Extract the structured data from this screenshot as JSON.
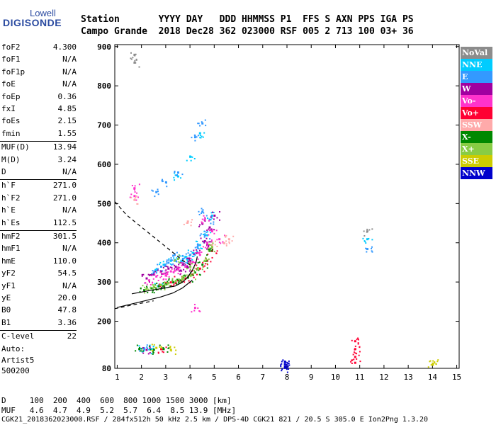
{
  "logo": {
    "brand": "Lowell",
    "product": "DIGISONDE"
  },
  "header": {
    "line1": "Station       YYYY DAY   DDD HHMMSS P1  FFS S AXN PPS IGA PS",
    "line2": "Campo Grande  2018 Dec28 362 023000 RSF 005 2 713 100 03+ 36"
  },
  "params": [
    [
      {
        "name": "foF2",
        "value": "4.300"
      },
      {
        "name": "foF1",
        "value": "N/A"
      },
      {
        "name": "foF1p",
        "value": "N/A"
      },
      {
        "name": "foE",
        "value": "N/A"
      },
      {
        "name": "foEp",
        "value": "0.36"
      },
      {
        "name": "fxI",
        "value": "4.85"
      },
      {
        "name": "foEs",
        "value": "2.15"
      },
      {
        "name": "fmin",
        "value": "1.55"
      }
    ],
    [
      {
        "name": "MUF(D)",
        "value": "13.94"
      },
      {
        "name": "M(D)",
        "value": "3.24"
      },
      {
        "name": "D",
        "value": "N/A"
      }
    ],
    [
      {
        "name": "h`F",
        "value": "271.0"
      },
      {
        "name": "h`F2",
        "value": "271.0"
      },
      {
        "name": "h`E",
        "value": "N/A"
      },
      {
        "name": "h`Es",
        "value": "112.5"
      }
    ],
    [
      {
        "name": "hmF2",
        "value": "301.5"
      },
      {
        "name": "hmF1",
        "value": "N/A"
      },
      {
        "name": "hmE",
        "value": "110.0"
      },
      {
        "name": "yF2",
        "value": "54.5"
      },
      {
        "name": "yF1",
        "value": "N/A"
      },
      {
        "name": "yE",
        "value": "20.0"
      },
      {
        "name": "B0",
        "value": "47.8"
      },
      {
        "name": "B1",
        "value": "3.36"
      }
    ],
    [
      {
        "name": "C-level",
        "value": "22"
      }
    ]
  ],
  "autoscaling": {
    "line1": "Auto:",
    "line2": "Artist5",
    "line3": "500200"
  },
  "footer": {
    "d_line": "D     100  200  400  600  800 1000 1500 3000 [km]",
    "muf_line": "MUF   4.6  4.7  4.9  5.2  5.7  6.4  8.5 13.9 [MHz]",
    "info_line": "CGK21_2018362023000.RSF / 284fx512h 50 kHz 2.5 km / DPS-4D CGK21 821 / 20.5 S 305.0 E Ion2Png 1.3.20"
  },
  "legend": [
    {
      "label": "NoVal",
      "color": "#8c8c8c"
    },
    {
      "label": "NNE",
      "color": "#00ccff"
    },
    {
      "label": "E",
      "color": "#3399ff"
    },
    {
      "label": "W",
      "color": "#a000a0"
    },
    {
      "label": "Vo-",
      "color": "#ff33cc"
    },
    {
      "label": "Vo+",
      "color": "#ff0033"
    },
    {
      "label": "SSW",
      "color": "#ffaaaa"
    },
    {
      "label": "X-",
      "color": "#008800"
    },
    {
      "label": "X+",
      "color": "#88cc44"
    },
    {
      "label": "SSE",
      "color": "#cccc00"
    },
    {
      "label": "NNW",
      "color": "#0000cc"
    }
  ],
  "chart_data": {
    "type": "scatter",
    "title": "",
    "xlabel": "",
    "ylabel": "",
    "xlim": [
      0.9,
      15.1
    ],
    "ylim": [
      80,
      905
    ],
    "x_ticks": [
      1,
      2,
      3,
      4,
      5,
      6,
      7,
      8,
      9,
      10,
      11,
      12,
      13,
      14,
      15
    ],
    "y_ticks": [
      80,
      200,
      300,
      400,
      500,
      600,
      700,
      800,
      900
    ],
    "grid": false,
    "legend_position": "right",
    "series": [
      {
        "name": "NoVal",
        "color": "#8c8c8c",
        "points": [
          [
            1.7,
            880
          ],
          [
            1.7,
            860
          ],
          [
            11.3,
            430
          ]
        ]
      },
      {
        "name": "NNE",
        "color": "#00ccff",
        "points": [
          [
            2.6,
            330
          ],
          [
            2.9,
            345
          ],
          [
            3.2,
            355
          ],
          [
            3.5,
            360
          ],
          [
            3.8,
            365
          ],
          [
            4.1,
            375
          ],
          [
            4.4,
            395
          ],
          [
            4.7,
            420
          ],
          [
            4.9,
            470
          ],
          [
            3.5,
            570
          ],
          [
            4.0,
            620
          ],
          [
            4.4,
            680
          ],
          [
            1.9,
            130
          ],
          [
            2.4,
            130
          ],
          [
            11.3,
            410
          ],
          [
            2.7,
            290
          ],
          [
            3.9,
            350
          ]
        ]
      },
      {
        "name": "E",
        "color": "#3399ff",
        "points": [
          [
            2.5,
            325
          ],
          [
            2.8,
            340
          ],
          [
            3.1,
            350
          ],
          [
            3.4,
            355
          ],
          [
            3.7,
            360
          ],
          [
            4.0,
            370
          ],
          [
            4.3,
            390
          ],
          [
            4.6,
            420
          ],
          [
            4.8,
            460
          ],
          [
            2.6,
            530
          ],
          [
            3.0,
            555
          ],
          [
            3.5,
            580
          ],
          [
            4.2,
            670
          ],
          [
            4.5,
            705
          ],
          [
            2.1,
            132
          ],
          [
            11.3,
            385
          ],
          [
            4.5,
            480
          ],
          [
            3.3,
            368
          ]
        ]
      },
      {
        "name": "W",
        "color": "#a000a0",
        "points": [
          [
            2.2,
            310
          ],
          [
            2.5,
            320
          ],
          [
            2.8,
            328
          ],
          [
            3.1,
            335
          ],
          [
            3.4,
            340
          ],
          [
            3.7,
            345
          ],
          [
            4.0,
            355
          ],
          [
            4.3,
            375
          ],
          [
            4.6,
            405
          ],
          [
            4.8,
            440
          ],
          [
            5.0,
            470
          ],
          [
            2.2,
            128
          ],
          [
            4.5,
            450
          ],
          [
            3.6,
            330
          ],
          [
            3.9,
            338
          ],
          [
            4.7,
            395
          ]
        ]
      },
      {
        "name": "Vo-",
        "color": "#ff33cc",
        "points": [
          [
            2.3,
            305
          ],
          [
            2.6,
            315
          ],
          [
            2.9,
            322
          ],
          [
            3.2,
            328
          ],
          [
            3.5,
            333
          ],
          [
            3.8,
            340
          ],
          [
            4.1,
            352
          ],
          [
            4.4,
            370
          ],
          [
            4.7,
            400
          ],
          [
            4.9,
            430
          ],
          [
            1.7,
            540
          ],
          [
            1.7,
            520
          ],
          [
            4.2,
            235
          ],
          [
            4.6,
            460
          ],
          [
            5.2,
            410
          ],
          [
            3.0,
            318
          ]
        ]
      },
      {
        "name": "Vo+",
        "color": "#ff0033",
        "points": [
          [
            2.9,
            290
          ],
          [
            3.2,
            300
          ],
          [
            3.5,
            305
          ],
          [
            3.8,
            310
          ],
          [
            4.1,
            320
          ],
          [
            4.4,
            335
          ],
          [
            4.7,
            355
          ],
          [
            4.9,
            380
          ],
          [
            10.8,
            150
          ],
          [
            10.8,
            130
          ],
          [
            10.8,
            110
          ],
          [
            10.8,
            95
          ],
          [
            2.8,
            130
          ]
        ]
      },
      {
        "name": "SSW",
        "color": "#ffaaaa",
        "points": [
          [
            5.4,
            400
          ],
          [
            5.6,
            410
          ],
          [
            1.7,
            510
          ],
          [
            4.9,
            395
          ],
          [
            3.9,
            455
          ]
        ]
      },
      {
        "name": "X-",
        "color": "#008800",
        "points": [
          [
            2.1,
            280
          ],
          [
            2.4,
            285
          ],
          [
            2.7,
            290
          ],
          [
            3.0,
            295
          ],
          [
            3.3,
            300
          ],
          [
            3.6,
            305
          ],
          [
            3.9,
            312
          ],
          [
            4.2,
            325
          ],
          [
            4.5,
            345
          ],
          [
            4.8,
            380
          ],
          [
            1.9,
            130
          ],
          [
            2.5,
            128
          ],
          [
            2.9,
            130
          ]
        ]
      },
      {
        "name": "X+",
        "color": "#88cc44",
        "points": [
          [
            2.2,
            283
          ],
          [
            2.5,
            288
          ],
          [
            2.8,
            293
          ],
          [
            3.1,
            298
          ],
          [
            3.4,
            303
          ],
          [
            3.7,
            308
          ],
          [
            4.0,
            318
          ],
          [
            4.3,
            333
          ],
          [
            4.6,
            355
          ],
          [
            4.9,
            390
          ],
          [
            3.5,
            360
          ],
          [
            4.0,
            340
          ]
        ]
      },
      {
        "name": "SSE",
        "color": "#cccc00",
        "points": [
          [
            14.0,
            93
          ],
          [
            14.0,
            90
          ],
          [
            2.6,
            133
          ],
          [
            3.2,
            128
          ]
        ]
      },
      {
        "name": "NNW",
        "color": "#0000cc",
        "points": [
          [
            7.9,
            98
          ],
          [
            7.9,
            92
          ],
          [
            7.9,
            86
          ],
          [
            7.9,
            82
          ]
        ]
      }
    ],
    "curves": [
      {
        "kind": "profile",
        "style": "solid",
        "points": [
          [
            1.6,
            270
          ],
          [
            2.5,
            280
          ],
          [
            3.0,
            285
          ],
          [
            3.4,
            290
          ],
          [
            3.7,
            300
          ],
          [
            3.9,
            312
          ],
          [
            4.1,
            330
          ],
          [
            4.25,
            350
          ],
          [
            4.3,
            365
          ]
        ]
      },
      {
        "kind": "profile-lower",
        "style": "solid",
        "points": [
          [
            1.0,
            235
          ],
          [
            2.0,
            250
          ],
          [
            2.8,
            262
          ],
          [
            3.3,
            272
          ],
          [
            3.7,
            285
          ],
          [
            3.9,
            295
          ],
          [
            4.1,
            305
          ]
        ]
      },
      {
        "kind": "dashed-extrapolation-upper",
        "style": "dashed",
        "points": [
          [
            0.9,
            505
          ],
          [
            1.4,
            470
          ],
          [
            2.0,
            440
          ],
          [
            2.6,
            410
          ],
          [
            3.2,
            380
          ],
          [
            3.7,
            355
          ],
          [
            4.1,
            340
          ]
        ]
      },
      {
        "kind": "dashed-extrapolation-lower",
        "style": "dashed",
        "points": [
          [
            0.9,
            232
          ],
          [
            1.5,
            240
          ],
          [
            2.0,
            246
          ],
          [
            2.5,
            252
          ]
        ]
      }
    ]
  }
}
